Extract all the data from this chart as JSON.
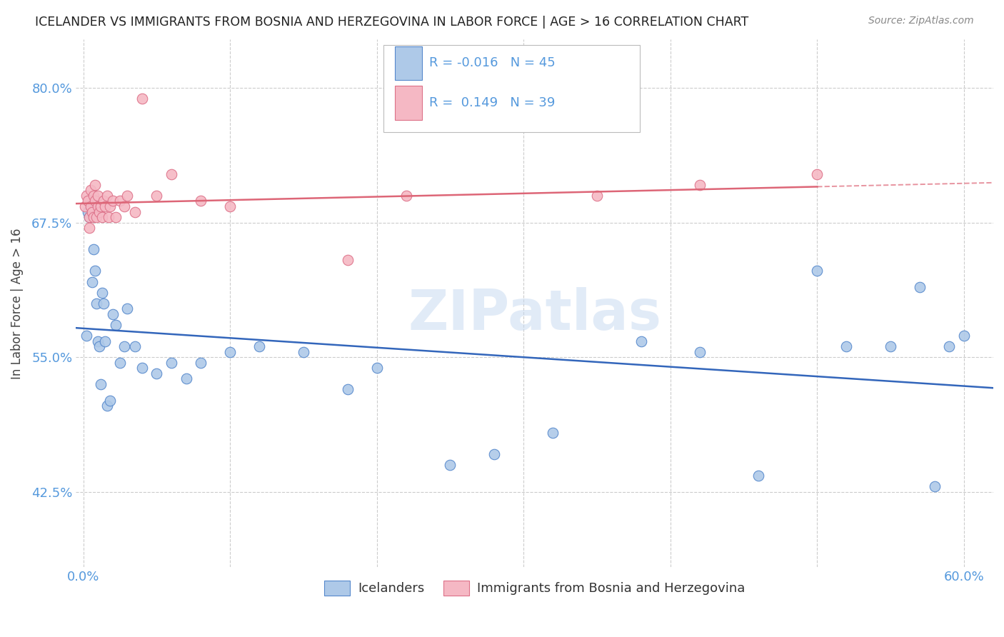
{
  "title": "ICELANDER VS IMMIGRANTS FROM BOSNIA AND HERZEGOVINA IN LABOR FORCE | AGE > 16 CORRELATION CHART",
  "source": "Source: ZipAtlas.com",
  "ylabel": "In Labor Force | Age > 16",
  "ylim": [
    0.355,
    0.845
  ],
  "xlim": [
    -0.005,
    0.62
  ],
  "yticks": [
    0.425,
    0.55,
    0.675,
    0.8
  ],
  "ytick_labels": [
    "42.5%",
    "55.0%",
    "67.5%",
    "80.0%"
  ],
  "xtick_vals": [
    0.0,
    0.1,
    0.2,
    0.3,
    0.4,
    0.5,
    0.6
  ],
  "xtick_labels": [
    "0.0%",
    "",
    "",
    "",
    "",
    "",
    "60.0%"
  ],
  "blue_scatter_x": [
    0.002,
    0.003,
    0.004,
    0.005,
    0.006,
    0.007,
    0.008,
    0.009,
    0.01,
    0.011,
    0.012,
    0.013,
    0.014,
    0.015,
    0.016,
    0.018,
    0.02,
    0.022,
    0.025,
    0.028,
    0.03,
    0.035,
    0.04,
    0.05,
    0.06,
    0.07,
    0.08,
    0.1,
    0.12,
    0.15,
    0.18,
    0.2,
    0.25,
    0.28,
    0.32,
    0.38,
    0.42,
    0.46,
    0.5,
    0.52,
    0.55,
    0.57,
    0.58,
    0.59,
    0.6
  ],
  "blue_scatter_y": [
    0.57,
    0.685,
    0.68,
    0.69,
    0.62,
    0.65,
    0.63,
    0.6,
    0.565,
    0.56,
    0.525,
    0.61,
    0.6,
    0.565,
    0.505,
    0.51,
    0.59,
    0.58,
    0.545,
    0.56,
    0.595,
    0.56,
    0.54,
    0.535,
    0.545,
    0.53,
    0.545,
    0.555,
    0.56,
    0.555,
    0.52,
    0.54,
    0.45,
    0.46,
    0.48,
    0.565,
    0.555,
    0.44,
    0.63,
    0.56,
    0.56,
    0.615,
    0.43,
    0.56,
    0.57
  ],
  "pink_scatter_x": [
    0.001,
    0.002,
    0.003,
    0.004,
    0.004,
    0.005,
    0.005,
    0.006,
    0.007,
    0.007,
    0.008,
    0.008,
    0.009,
    0.01,
    0.01,
    0.011,
    0.012,
    0.013,
    0.014,
    0.015,
    0.016,
    0.017,
    0.018,
    0.02,
    0.022,
    0.025,
    0.028,
    0.03,
    0.035,
    0.04,
    0.05,
    0.06,
    0.08,
    0.1,
    0.18,
    0.22,
    0.35,
    0.42,
    0.5
  ],
  "pink_scatter_y": [
    0.69,
    0.7,
    0.695,
    0.68,
    0.67,
    0.705,
    0.69,
    0.685,
    0.7,
    0.68,
    0.71,
    0.695,
    0.68,
    0.69,
    0.7,
    0.685,
    0.69,
    0.68,
    0.695,
    0.69,
    0.7,
    0.68,
    0.69,
    0.695,
    0.68,
    0.695,
    0.69,
    0.7,
    0.685,
    0.79,
    0.7,
    0.72,
    0.695,
    0.69,
    0.64,
    0.7,
    0.7,
    0.71,
    0.72
  ],
  "blue_color": "#aec9e8",
  "pink_color": "#f5b8c4",
  "blue_edge_color": "#5588cc",
  "pink_edge_color": "#dd7088",
  "blue_line_color": "#3366bb",
  "pink_line_color": "#dd6677",
  "blue_R": -0.016,
  "blue_N": 45,
  "pink_R": 0.149,
  "pink_N": 39,
  "legend_blue_label": "Icelanders",
  "legend_pink_label": "Immigrants from Bosnia and Herzegovina",
  "watermark": "ZIPatlas",
  "background_color": "#ffffff",
  "grid_color": "#cccccc",
  "tick_color": "#5599dd"
}
